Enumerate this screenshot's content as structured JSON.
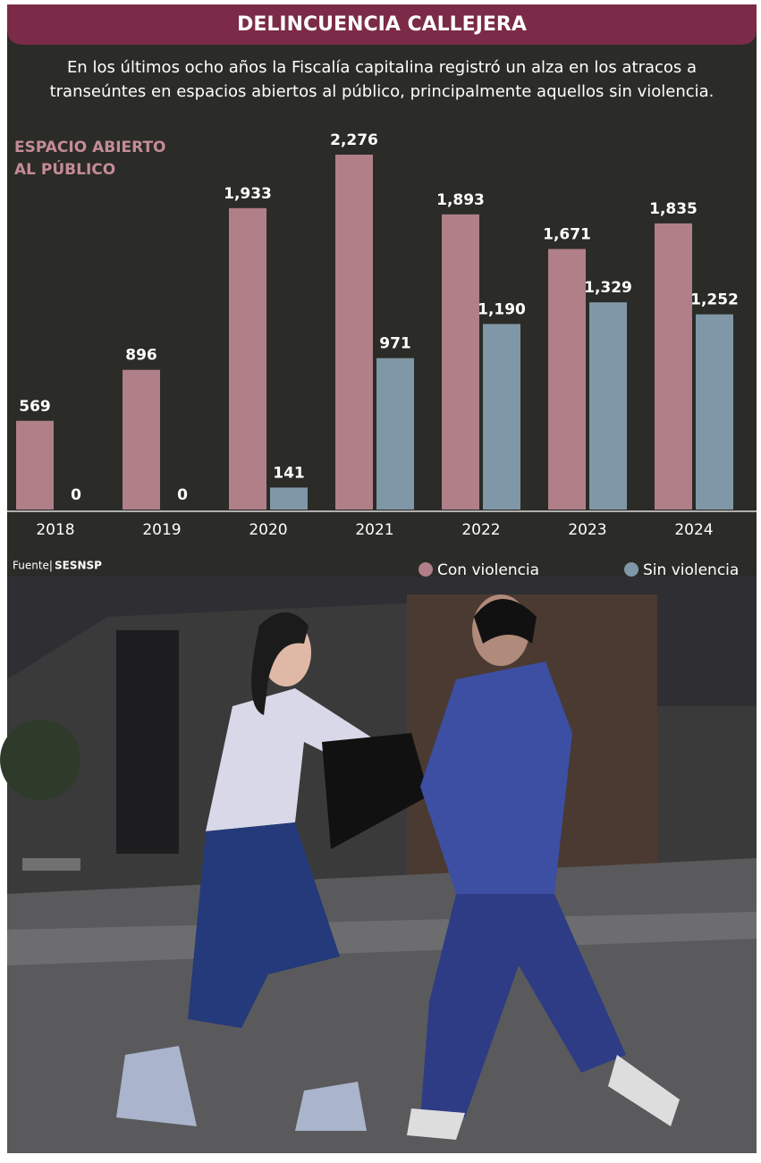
{
  "chart_data": {
    "type": "bar",
    "title": "DELINCUENCIA CALLEJERA",
    "subtitle": [
      "En los últimos ocho años la Fiscalía capitalina registró un alza en los atracos a",
      "transeúntes en espacios abiertos al público, principalmente aquellos sin violencia."
    ],
    "panel_label": [
      "ESPACIO ABIERTO",
      "AL PÚBLICO"
    ],
    "categories": [
      "2018",
      "2019",
      "2020",
      "2021",
      "2022",
      "2023",
      "2024"
    ],
    "series": [
      {
        "name": "Con violencia",
        "color": "#b07f88",
        "values": [
          569,
          896,
          1933,
          2276,
          1893,
          1671,
          1835
        ],
        "value_labels": [
          "569",
          "896",
          "1,933",
          "2,276",
          "1,893",
          "1,671",
          "1,835"
        ]
      },
      {
        "name": "Sin violencia",
        "color": "#7f97a6",
        "values": [
          0,
          0,
          141,
          971,
          1190,
          1329,
          1252
        ],
        "value_labels": [
          "0",
          "0",
          "141",
          "971",
          "1,190",
          "1,329",
          "1,252"
        ]
      }
    ],
    "source_label": "Fuente|",
    "source": "SESNSP"
  }
}
